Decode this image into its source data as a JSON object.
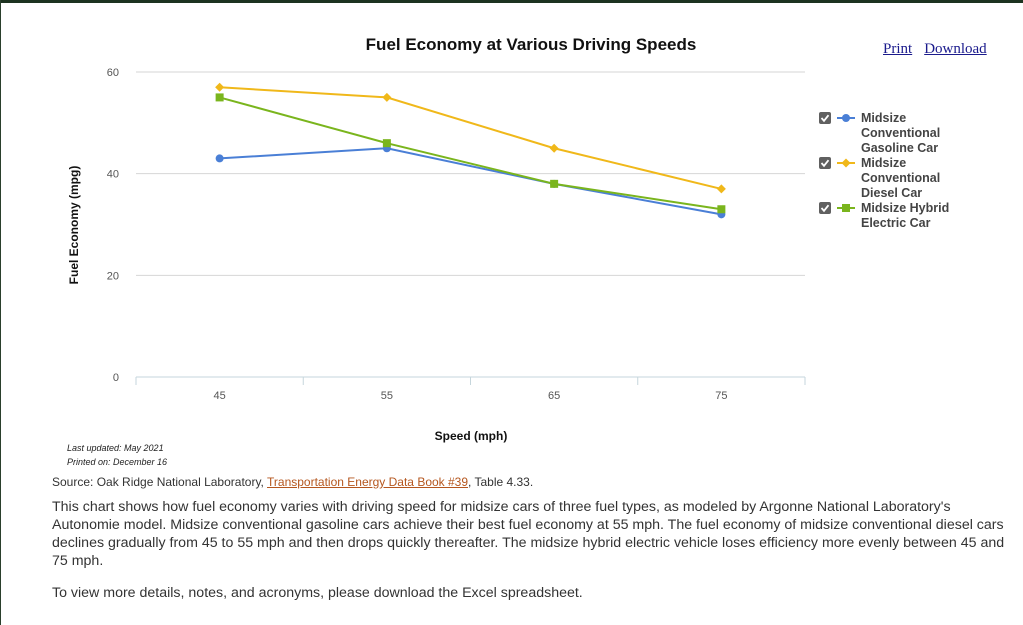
{
  "links": {
    "print": "Print",
    "download": "Download"
  },
  "meta": {
    "last_updated": "Last updated: May 2021",
    "printed_on": "Printed on: December 16"
  },
  "source": {
    "prefix": "Source: Oak Ridge National Laboratory, ",
    "link_text": "Transportation Energy Data Book #39",
    "suffix": ", Table 4.33."
  },
  "description": "This chart shows how fuel economy varies with driving speed for midsize cars of three fuel types, as modeled by Argonne National Laboratory's Autonomie model. Midsize conventional gasoline cars achieve their best fuel economy at 55 mph. The fuel economy of midsize conventional diesel cars declines gradually from 45 to 55 mph and then drops quickly thereafter. The midsize hybrid electric vehicle loses efficiency more evenly between 45 and 75 mph.",
  "note": "To view more details, notes, and acronyms, please download the Excel spreadsheet.",
  "chart_data": {
    "type": "line",
    "title": "Fuel Economy at Various Driving Speeds",
    "xlabel": "Speed (mph)",
    "ylabel": "Fuel Economy (mpg)",
    "categories": [
      "45",
      "55",
      "65",
      "75"
    ],
    "ylim": [
      0,
      60
    ],
    "yticks": [
      0,
      20,
      40,
      60
    ],
    "grid": true,
    "legend_position": "right",
    "series": [
      {
        "name_lines": [
          "Midsize",
          "Conventional",
          "Gasoline Car"
        ],
        "color": "#4a7fd6",
        "marker": "circle",
        "values": [
          43,
          45,
          38,
          32
        ]
      },
      {
        "name_lines": [
          "Midsize",
          "Conventional",
          "Diesel Car"
        ],
        "color": "#f0b81a",
        "marker": "diamond",
        "values": [
          57,
          55,
          45,
          37
        ]
      },
      {
        "name_lines": [
          "Midsize Hybrid",
          "Electric Car"
        ],
        "color": "#7ab51d",
        "marker": "square",
        "values": [
          55,
          46,
          38,
          33
        ]
      }
    ]
  }
}
